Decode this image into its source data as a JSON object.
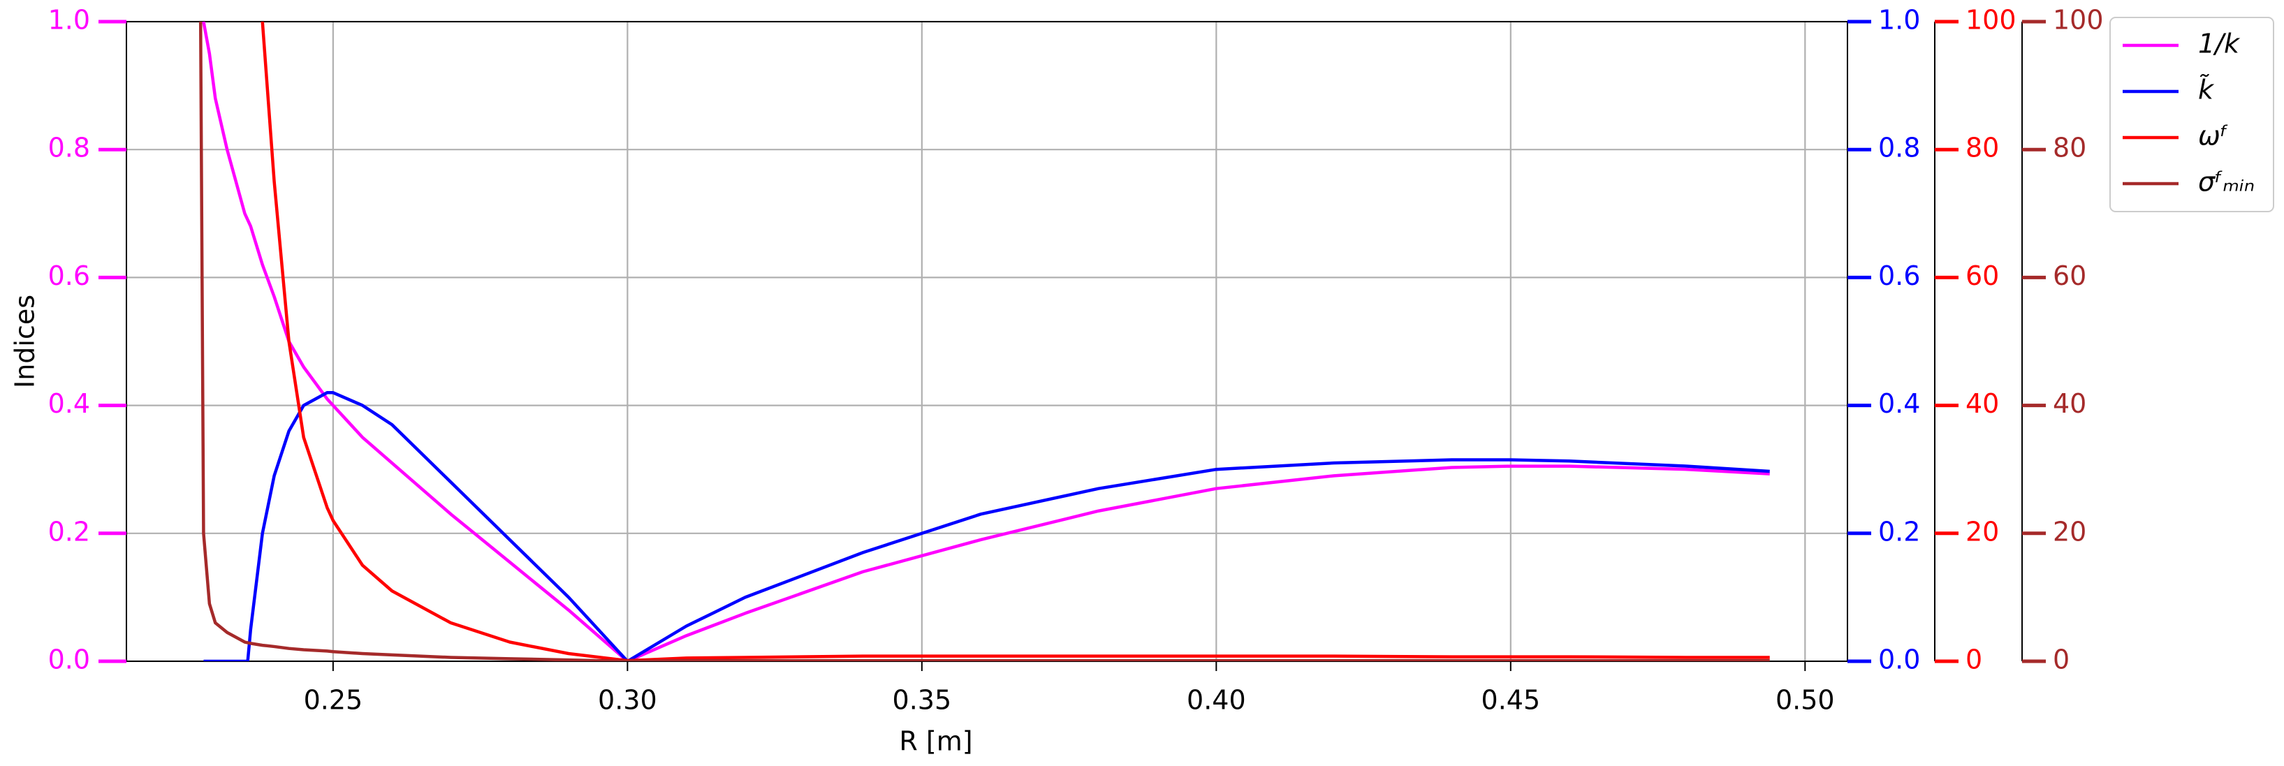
{
  "chart_data": {
    "type": "line",
    "xlabel": "R [m]",
    "ylabel": "Indices",
    "x": [
      0.2275,
      0.228,
      0.229,
      0.23,
      0.232,
      0.235,
      0.2355,
      0.236,
      0.238,
      0.24,
      0.2425,
      0.245,
      0.249,
      0.25,
      0.255,
      0.26,
      0.27,
      0.28,
      0.29,
      0.3,
      0.31,
      0.32,
      0.34,
      0.36,
      0.38,
      0.4,
      0.42,
      0.44,
      0.45,
      0.46,
      0.48,
      0.494
    ],
    "series": [
      {
        "name": "1/k",
        "color": "#ff00ff",
        "axis": "y",
        "values": [
          null,
          1.0,
          0.95,
          0.88,
          0.8,
          0.7,
          0.69,
          0.68,
          0.62,
          0.57,
          0.5,
          0.46,
          0.41,
          0.4,
          0.35,
          0.31,
          0.23,
          0.155,
          0.08,
          0.0,
          0.04,
          0.075,
          0.14,
          0.19,
          0.235,
          0.27,
          0.29,
          0.303,
          0.305,
          0.305,
          0.3,
          0.293
        ]
      },
      {
        "name": "k̃",
        "color": "#0000ff",
        "axis": "y2",
        "values": [
          null,
          0,
          0,
          0,
          0,
          0,
          0,
          0.05,
          0.2,
          0.29,
          0.36,
          0.4,
          0.42,
          0.42,
          0.4,
          0.37,
          0.28,
          0.19,
          0.1,
          0.0,
          0.055,
          0.1,
          0.17,
          0.23,
          0.27,
          0.3,
          0.31,
          0.315,
          0.315,
          0.313,
          0.305,
          0.297
        ]
      },
      {
        "name": "ωᶠ",
        "color": "#ff0000",
        "axis": "y3",
        "values": [
          null,
          null,
          null,
          null,
          null,
          null,
          null,
          130,
          100,
          75,
          50,
          35,
          24,
          22,
          15,
          11,
          6,
          3,
          1.2,
          0.1,
          0.5,
          0.6,
          0.8,
          0.8,
          0.8,
          0.8,
          0.8,
          0.7,
          0.7,
          0.7,
          0.6,
          0.6
        ]
      },
      {
        "name": "σᶠₘᵢₙ",
        "color": "#a52a2a",
        "axis": "y4",
        "values": [
          100,
          20,
          9,
          6,
          4.5,
          3,
          2.9,
          2.8,
          2.5,
          2.3,
          2.0,
          1.8,
          1.6,
          1.5,
          1.2,
          1.0,
          0.6,
          0.4,
          0.2,
          0.0,
          0.1,
          0.1,
          0.1,
          0.1,
          0.1,
          0.1,
          0.1,
          0.1,
          0.1,
          0.1,
          0.1,
          0.1
        ]
      }
    ],
    "xlim": [
      0.2149,
      0.5072
    ],
    "xticks": [
      0.25,
      {
        "value": 0.3,
        "label": "0.30"
      },
      0.35,
      {
        "value": 0.4,
        "label": "0.40"
      },
      0.45,
      {
        "value": 0.5,
        "label": "0.50"
      }
    ],
    "ylim": [
      0,
      1
    ],
    "yticks": [
      {
        "value": 0,
        "label": "0.0"
      },
      0.2,
      0.4,
      0.6,
      0.8,
      {
        "value": 1,
        "label": "1.0"
      }
    ],
    "y2lim": [
      0,
      1
    ],
    "y2ticks": [
      {
        "value": 0,
        "label": "0.0"
      },
      0.2,
      0.4,
      0.6,
      0.8,
      {
        "value": 1,
        "label": "1.0"
      }
    ],
    "y3lim": [
      0,
      100
    ],
    "y3ticks": [
      0,
      20,
      40,
      60,
      80,
      100
    ],
    "y4lim": [
      0,
      100
    ],
    "y4ticks": [
      0,
      20,
      40,
      60,
      80,
      100
    ],
    "grid": true,
    "legend": "outside upper right"
  }
}
